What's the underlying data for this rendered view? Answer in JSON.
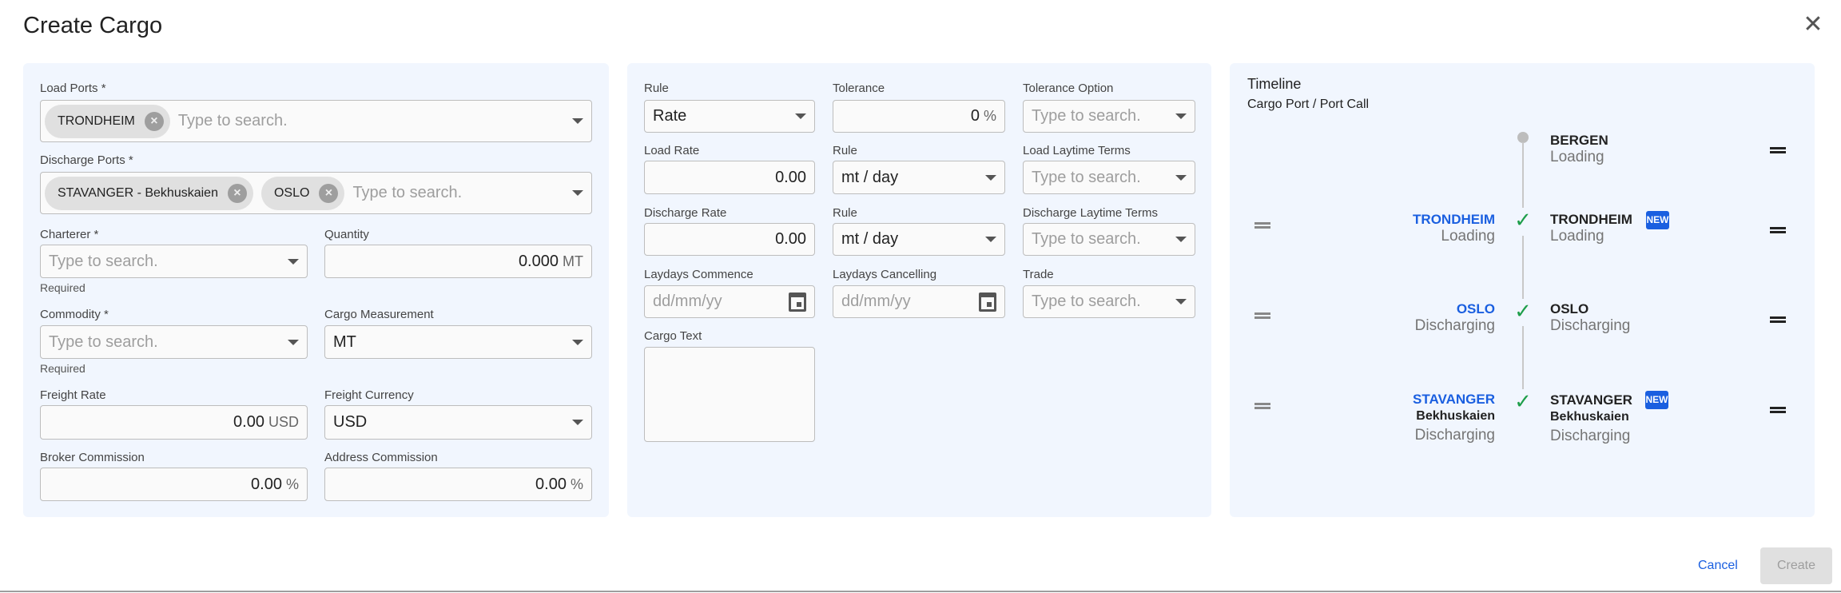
{
  "dialog": {
    "title": "Create Cargo",
    "close_icon": "close-icon"
  },
  "left": {
    "load_ports": {
      "label": "Load Ports *",
      "chips": [
        "TRONDHEIM"
      ],
      "placeholder": "Type to search."
    },
    "discharge_ports": {
      "label": "Discharge Ports *",
      "chips": [
        "STAVANGER - Bekhuskaien",
        "OSLO"
      ],
      "placeholder": "Type to search."
    },
    "charterer": {
      "label": "Charterer *",
      "placeholder": "Type to search.",
      "helper": "Required"
    },
    "quantity": {
      "label": "Quantity",
      "value": "0.000",
      "unit": "MT"
    },
    "commodity": {
      "label": "Commodity *",
      "placeholder": "Type to search.",
      "helper": "Required"
    },
    "cargo_measurement": {
      "label": "Cargo Measurement",
      "value": "MT"
    },
    "freight_rate": {
      "label": "Freight Rate",
      "value": "0.00",
      "unit": "USD"
    },
    "freight_currency": {
      "label": "Freight Currency",
      "value": "USD"
    },
    "broker_commission": {
      "label": "Broker Commission",
      "value": "0.00",
      "unit": "%"
    },
    "address_commission": {
      "label": "Address Commission",
      "value": "0.00",
      "unit": "%"
    }
  },
  "middle": {
    "rule": {
      "label": "Rule",
      "value": "Rate"
    },
    "tolerance": {
      "label": "Tolerance",
      "value": "0",
      "unit": "%"
    },
    "tolerance_option": {
      "label": "Tolerance Option",
      "placeholder": "Type to search."
    },
    "load_rate": {
      "label": "Load Rate",
      "value": "0.00"
    },
    "load_rule": {
      "label": "Rule",
      "value": "mt / day"
    },
    "load_laytime": {
      "label": "Load Laytime Terms",
      "placeholder": "Type to search."
    },
    "discharge_rate": {
      "label": "Discharge Rate",
      "value": "0.00"
    },
    "discharge_rule": {
      "label": "Rule",
      "value": "mt / day"
    },
    "discharge_laytime": {
      "label": "Discharge Laytime Terms",
      "placeholder": "Type to search."
    },
    "laydays_commence": {
      "label": "Laydays Commence",
      "placeholder": "dd/mm/yy"
    },
    "laydays_cancelling": {
      "label": "Laydays Cancelling",
      "placeholder": "dd/mm/yy"
    },
    "trade": {
      "label": "Trade",
      "placeholder": "Type to search."
    },
    "cargo_text": {
      "label": "Cargo Text",
      "value": ""
    }
  },
  "timeline": {
    "title": "Timeline",
    "subtitle": "Cargo Port / Port Call",
    "badge": "NEW",
    "port_calls": [
      {
        "name": "BERGEN",
        "sub": "",
        "action": "Loading"
      },
      {
        "name": "TRONDHEIM",
        "sub": "",
        "action": "Loading",
        "new": true
      },
      {
        "name": "OSLO",
        "sub": "",
        "action": "Discharging"
      },
      {
        "name": "STAVANGER",
        "sub": "Bekhuskaien",
        "action": "Discharging",
        "new": true
      }
    ],
    "cargo_ports": [
      {
        "name": "TRONDHEIM",
        "sub": "",
        "action": "Loading"
      },
      {
        "name": "OSLO",
        "sub": "",
        "action": "Discharging"
      },
      {
        "name": "STAVANGER",
        "sub": "Bekhuskaien",
        "action": "Discharging"
      }
    ],
    "colors": {
      "link": "#1a5fe0",
      "check": "#1e9e4a",
      "badge": "#1a5fe0"
    }
  },
  "footer": {
    "cancel": "Cancel",
    "create": "Create"
  }
}
